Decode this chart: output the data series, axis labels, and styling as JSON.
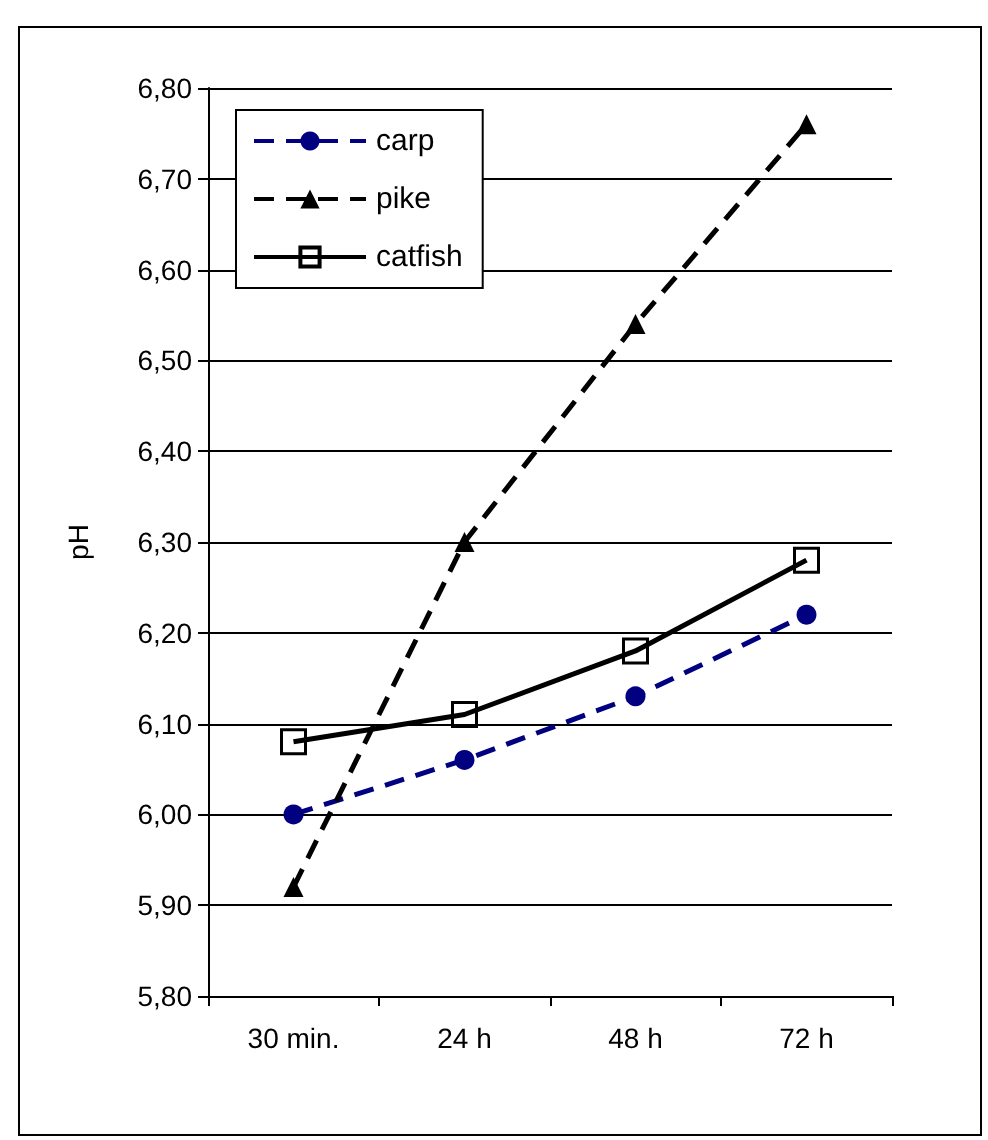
{
  "chart_data": {
    "type": "line",
    "ylabel": "pH",
    "categories": [
      "30 min.",
      "24 h",
      "48 h",
      "72 h"
    ],
    "series": [
      {
        "name": "carp",
        "color": "#000080",
        "values": [
          6.0,
          6.06,
          6.13,
          6.22
        ],
        "marker": "circle",
        "line_style": "dashed"
      },
      {
        "name": "pike",
        "color": "#000000",
        "values": [
          5.92,
          6.3,
          6.54,
          6.76
        ],
        "marker": "triangle",
        "line_style": "dashed"
      },
      {
        "name": "catfish",
        "color": "#000000",
        "values": [
          6.08,
          6.11,
          6.18,
          6.28
        ],
        "marker": "square",
        "line_style": "solid"
      }
    ],
    "ylim": [
      5.8,
      6.8
    ],
    "yticks": [
      {
        "value": 5.8,
        "label": "5,80"
      },
      {
        "value": 5.9,
        "label": "5,90"
      },
      {
        "value": 6.0,
        "label": "6,00"
      },
      {
        "value": 6.1,
        "label": "6,10"
      },
      {
        "value": 6.2,
        "label": "6,20"
      },
      {
        "value": 6.3,
        "label": "6,30"
      },
      {
        "value": 6.4,
        "label": "6,40"
      },
      {
        "value": 6.5,
        "label": "6,50"
      },
      {
        "value": 6.6,
        "label": "6,60"
      },
      {
        "value": 6.7,
        "label": "6,70"
      },
      {
        "value": 6.8,
        "label": "6,80"
      }
    ],
    "grid": "y",
    "legend": "top left"
  }
}
